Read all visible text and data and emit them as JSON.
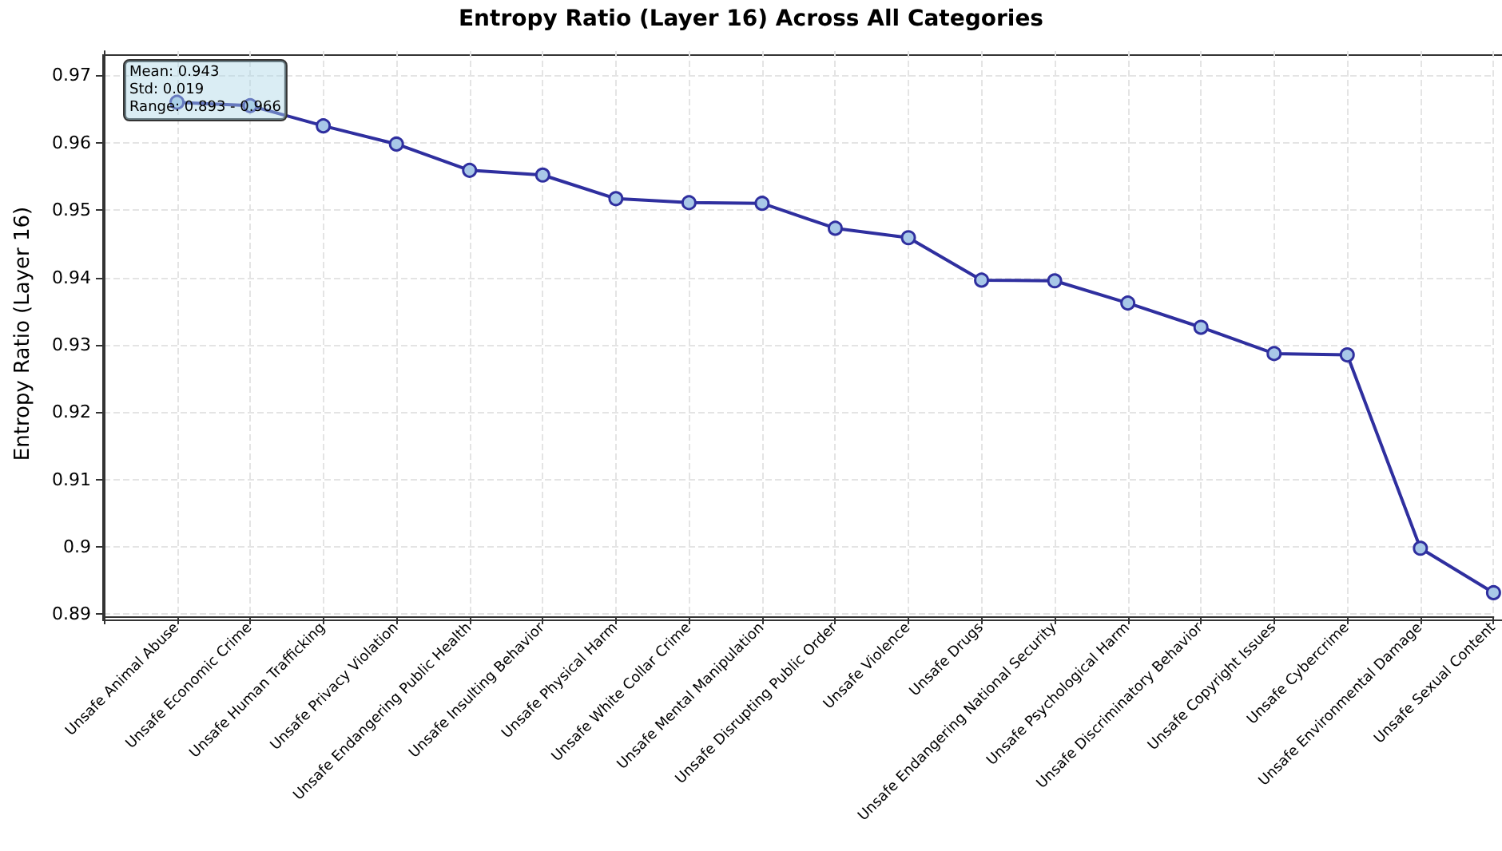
{
  "chart_data": {
    "type": "line",
    "title": "Entropy Ratio (Layer 16) Across All Categories",
    "ylabel": "Entropy Ratio (Layer 16)",
    "categories": [
      "Unsafe Animal Abuse",
      "Unsafe Economic Crime",
      "Unsafe Human Trafficking",
      "Unsafe Privacy Violation",
      "Unsafe Endangering Public Health",
      "Unsafe Insulting Behavior",
      "Unsafe Physical Harm",
      "Unsafe White Collar Crime",
      "Unsafe Mental Manipulation",
      "Unsafe Disrupting Public Order",
      "Unsafe Violence",
      "Unsafe Drugs",
      "Unsafe Endangering National Security",
      "Unsafe Psychological Harm",
      "Unsafe Discriminatory Behavior",
      "Unsafe Copyright Issues",
      "Unsafe Cybercrime",
      "Unsafe Environmental Damage",
      "Unsafe Sexual Content"
    ],
    "series": [
      {
        "color": "#2f2f9f",
        "values": [
          0.966,
          0.9655,
          0.9625,
          0.9598,
          0.9559,
          0.9552,
          0.9517,
          0.9511,
          0.951,
          0.9473,
          0.9459,
          0.9396,
          0.9395,
          0.9362,
          0.9326,
          0.9287,
          0.9285,
          0.8998,
          0.8932
        ]
      }
    ],
    "ylim": [
      0.8897,
      0.9736
    ],
    "yticks": [
      0.89,
      0.9,
      0.91,
      0.92,
      0.93,
      0.94,
      0.95,
      0.96,
      0.97
    ],
    "grid": true,
    "marker": "circle",
    "line_style": "solid",
    "annotations": [
      "Mean: 0.943\nStd: 0.019\nRange: 0.893 - 0.966"
    ]
  }
}
